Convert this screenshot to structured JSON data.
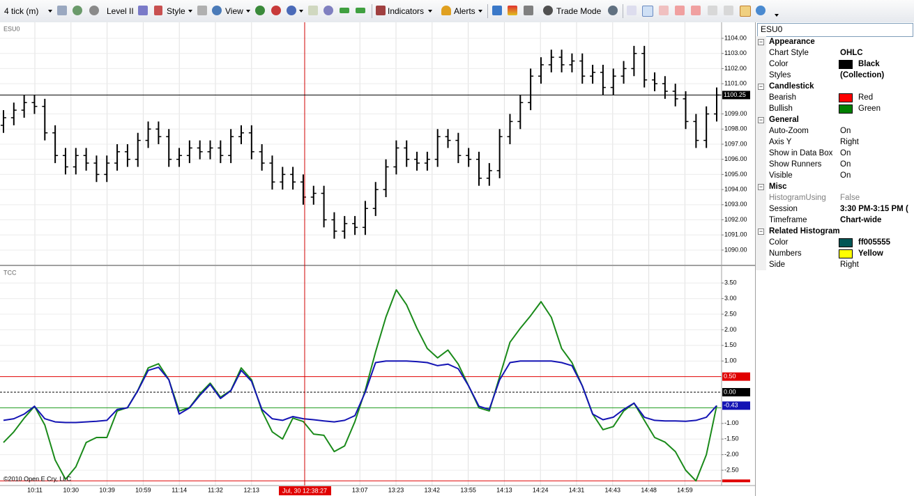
{
  "toolbar": {
    "items": [
      "4 tick (m)",
      "Level II",
      "Style",
      "View",
      "Indicators",
      "Alerts",
      "Trade Mode"
    ]
  },
  "chart_data": [
    {
      "type": "ohlc",
      "title": "ESU0",
      "color": "#000000",
      "grid": true,
      "open": [
        1098.25,
        1098.75,
        1099.25,
        1099.75,
        1099.5,
        1097.75,
        1096.25,
        1095.5,
        1096.25,
        1095.75,
        1095.0,
        1095.75,
        1096.5,
        1096.0,
        1097.25,
        1098.0,
        1097.5,
        1096.0,
        1096.25,
        1096.75,
        1096.5,
        1096.75,
        1096.25,
        1097.5,
        1097.75,
        1096.5,
        1095.75,
        1094.5,
        1095.0,
        1094.5,
        1093.5,
        1093.75,
        1092.0,
        1091.25,
        1091.75,
        1091.5,
        1092.75,
        1094.0,
        1095.5,
        1096.75,
        1096.0,
        1095.75,
        1096.0,
        1097.5,
        1097.25,
        1096.25,
        1096.0,
        1094.75,
        1095.25,
        1097.5,
        1098.5,
        1099.75,
        1101.5,
        1102.25,
        1102.75,
        1102.25,
        1102.5,
        1101.5,
        1101.75,
        1100.75,
        1101.5,
        1102.0,
        1103.0,
        1101.25,
        1101.0,
        1100.5,
        1100.0,
        1098.5,
        1097.25,
        1099.0
      ],
      "high": [
        1099.25,
        1099.75,
        1100.25,
        1100.25,
        1100.0,
        1098.25,
        1096.75,
        1096.75,
        1096.75,
        1096.25,
        1096.25,
        1097.0,
        1097.0,
        1097.75,
        1098.5,
        1098.5,
        1098.0,
        1096.75,
        1097.25,
        1097.25,
        1097.25,
        1097.25,
        1098.0,
        1098.25,
        1098.25,
        1097.0,
        1096.25,
        1095.5,
        1095.5,
        1095.0,
        1094.25,
        1094.25,
        1092.5,
        1092.25,
        1092.25,
        1093.25,
        1094.5,
        1096.0,
        1097.25,
        1097.25,
        1096.5,
        1096.5,
        1098.0,
        1098.0,
        1097.75,
        1096.75,
        1096.5,
        1095.75,
        1098.0,
        1099.0,
        1100.25,
        1102.0,
        1102.75,
        1103.25,
        1103.25,
        1103.0,
        1103.0,
        1102.25,
        1102.25,
        1102.0,
        1102.5,
        1103.5,
        1103.5,
        1101.75,
        1101.5,
        1101.0,
        1100.5,
        1099.0,
        1099.5,
        1100.75
      ],
      "low": [
        1097.75,
        1098.25,
        1098.75,
        1099.0,
        1097.25,
        1095.75,
        1095.0,
        1095.0,
        1095.25,
        1094.5,
        1094.5,
        1095.25,
        1095.5,
        1095.5,
        1096.75,
        1097.0,
        1095.5,
        1095.5,
        1095.75,
        1096.0,
        1096.0,
        1095.75,
        1095.75,
        1097.0,
        1096.0,
        1095.25,
        1094.0,
        1094.0,
        1094.0,
        1093.0,
        1093.0,
        1091.5,
        1090.75,
        1090.75,
        1091.0,
        1091.0,
        1092.25,
        1093.5,
        1095.0,
        1095.5,
        1095.25,
        1095.25,
        1095.5,
        1096.75,
        1095.75,
        1095.5,
        1094.25,
        1094.25,
        1094.75,
        1097.0,
        1098.0,
        1099.25,
        1101.0,
        1101.75,
        1101.75,
        1101.75,
        1101.0,
        1101.0,
        1100.25,
        1100.25,
        1101.0,
        1101.5,
        1100.75,
        1100.5,
        1100.0,
        1099.5,
        1098.0,
        1096.75,
        1096.75,
        1098.5
      ],
      "close": [
        1098.75,
        1099.25,
        1099.75,
        1099.5,
        1097.75,
        1096.25,
        1095.5,
        1096.25,
        1095.75,
        1095.0,
        1095.75,
        1096.5,
        1096.0,
        1097.25,
        1098.0,
        1097.5,
        1096.0,
        1096.25,
        1096.75,
        1096.5,
        1096.75,
        1096.25,
        1097.5,
        1097.75,
        1096.5,
        1095.75,
        1094.5,
        1095.0,
        1094.5,
        1093.5,
        1093.75,
        1092.0,
        1091.25,
        1091.75,
        1091.5,
        1092.75,
        1094.0,
        1095.5,
        1096.75,
        1096.0,
        1095.75,
        1096.0,
        1097.5,
        1097.25,
        1096.25,
        1096.0,
        1094.75,
        1095.25,
        1097.5,
        1098.5,
        1099.75,
        1101.5,
        1102.25,
        1102.75,
        1102.25,
        1102.5,
        1101.5,
        1101.75,
        1100.75,
        1101.5,
        1102.0,
        1103.0,
        1101.25,
        1101.0,
        1100.5,
        1100.0,
        1098.5,
        1097.25,
        1099.0,
        1100.25
      ],
      "last_price": 1100.25,
      "ylim": [
        1089.03,
        1105.06
      ],
      "yticks": [
        {
          "value": 1104,
          "label": "1104.00"
        },
        {
          "value": 1103,
          "label": "1103.00"
        },
        {
          "value": 1102,
          "label": "1102.00"
        },
        {
          "value": 1101,
          "label": "1101.00"
        },
        {
          "value": 1099,
          "label": "1099.00"
        },
        {
          "value": 1098,
          "label": "1098.00"
        },
        {
          "value": 1097,
          "label": "1097.00"
        },
        {
          "value": 1096,
          "label": "1096.00"
        },
        {
          "value": 1095,
          "label": "1095.00"
        },
        {
          "value": 1094,
          "label": "1094.00"
        },
        {
          "value": 1093,
          "label": "1093.00"
        },
        {
          "value": 1092,
          "label": "1092.00"
        },
        {
          "value": 1091,
          "label": "1091.00"
        },
        {
          "value": 1090,
          "label": "1090.00"
        }
      ]
    },
    {
      "type": "line",
      "title": "TCC",
      "grid": true,
      "series": [
        {
          "color": "#1a8a1a",
          "values": [
            -1.61,
            -1.27,
            -0.83,
            -0.45,
            -1.05,
            -2.17,
            -2.79,
            -2.39,
            -1.61,
            -1.45,
            -1.45,
            -0.6,
            -0.49,
            0.06,
            0.78,
            0.91,
            0.4,
            -0.6,
            -0.49,
            -0.05,
            0.29,
            -0.16,
            0.06,
            0.78,
            0.4,
            -0.6,
            -1.27,
            -1.5,
            -0.83,
            -0.94,
            -1.34,
            -1.38,
            -1.9,
            -1.72,
            -0.94,
            0.06,
            1.29,
            2.41,
            3.28,
            2.8,
            2.05,
            1.4,
            1.1,
            1.35,
            0.9,
            0.2,
            -0.5,
            -0.6,
            0.5,
            1.6,
            2.05,
            2.45,
            2.9,
            2.4,
            1.4,
            0.95,
            0.2,
            -0.7,
            -1.2,
            -1.1,
            -0.6,
            -0.35,
            -0.9,
            -1.45,
            -1.6,
            -1.9,
            -2.5,
            -2.84,
            -2.0,
            -0.43
          ]
        },
        {
          "color": "#1414b4",
          "values": [
            -0.9,
            -0.85,
            -0.7,
            -0.45,
            -0.85,
            -0.95,
            -0.97,
            -0.97,
            -0.95,
            -0.93,
            -0.9,
            -0.55,
            -0.5,
            0.05,
            0.7,
            0.8,
            0.4,
            -0.7,
            -0.5,
            -0.1,
            0.25,
            -0.2,
            0.05,
            0.7,
            0.35,
            -0.55,
            -0.85,
            -0.9,
            -0.78,
            -0.85,
            -0.88,
            -0.92,
            -0.95,
            -0.9,
            -0.75,
            0.0,
            0.95,
            1.0,
            1.0,
            1.0,
            0.98,
            0.95,
            0.85,
            0.9,
            0.75,
            0.2,
            -0.45,
            -0.55,
            0.4,
            0.95,
            1.0,
            1.0,
            1.0,
            1.0,
            0.95,
            0.85,
            0.2,
            -0.7,
            -0.88,
            -0.8,
            -0.55,
            -0.35,
            -0.8,
            -0.9,
            -0.92,
            -0.92,
            -0.93,
            -0.9,
            -0.8,
            -0.43
          ]
        }
      ],
      "last_value": -0.43,
      "levels": [
        {
          "value": 0.5,
          "label": "0.50",
          "color": "#e00000"
        },
        {
          "value": 0,
          "label": "0.00",
          "color": "#000000",
          "dashed": true
        },
        {
          "value": -0.5,
          "color": "#1a9a1a"
        },
        {
          "value": -2.84,
          "color": "#e00000"
        }
      ],
      "ylim": [
        -2.99,
        4.04
      ],
      "yticks": [
        {
          "value": 3.5,
          "label": "3.50"
        },
        {
          "value": 3,
          "label": "3.00"
        },
        {
          "value": 2.5,
          "label": "2.50"
        },
        {
          "value": 2,
          "label": "2.00"
        },
        {
          "value": 1.5,
          "label": "1.50"
        },
        {
          "value": 1,
          "label": "1.00"
        },
        {
          "value": -1,
          "label": "-1.00"
        },
        {
          "value": -1.5,
          "label": "-1.50"
        },
        {
          "value": -2,
          "label": "-2.00"
        },
        {
          "value": -2.5,
          "label": "-2.50"
        }
      ]
    }
  ],
  "time_axis": {
    "labels": [
      "10:11",
      "10:30",
      "10:39",
      "10:59",
      "11:14",
      "11:32",
      "12:13",
      "13:07",
      "13:23",
      "13:42",
      "13:55",
      "14:13",
      "14:24",
      "14:31",
      "14:43",
      "14:48",
      "14:59"
    ],
    "crosshair_label": "Jul, 30 12:38:27"
  },
  "footer": "©2010 Open E Cry, LLC",
  "properties": {
    "object": "ESU0",
    "groups": [
      {
        "name": "Appearance",
        "rows": [
          {
            "name": "Chart Style",
            "value": "OHLC",
            "bold": true
          },
          {
            "name": "Color",
            "value": "Black",
            "bold": true,
            "swatch": "#000000"
          },
          {
            "name": "Styles",
            "value": "(Collection)",
            "bold": true
          }
        ]
      },
      {
        "name": "Candlestick",
        "rows": [
          {
            "name": "Bearish",
            "value": "Red",
            "swatch": "#ff0000"
          },
          {
            "name": "Bullish",
            "value": "Green",
            "swatch": "#008000"
          }
        ]
      },
      {
        "name": "General",
        "rows": [
          {
            "name": "Auto-Zoom",
            "value": "On"
          },
          {
            "name": "Axis Y",
            "value": "Right"
          },
          {
            "name": "Show in Data Box",
            "value": "On"
          },
          {
            "name": "Show Runners",
            "value": "On"
          },
          {
            "name": "Visible",
            "value": "On"
          }
        ]
      },
      {
        "name": "Misc",
        "rows": [
          {
            "name": "HistogramUsing",
            "value": "False",
            "disabled": true
          },
          {
            "name": "Session",
            "value": "3:30 PM-3:15 PM (",
            "bold": true
          },
          {
            "name": "Timeframe",
            "value": "Chart-wide",
            "bold": true
          }
        ]
      },
      {
        "name": "Related Histogram",
        "rows": [
          {
            "name": "Color",
            "value": "ff005555",
            "bold": true,
            "swatch": "#005555"
          },
          {
            "name": "Numbers",
            "value": "Yellow",
            "bold": true,
            "swatch": "#ffff00"
          },
          {
            "name": "Side",
            "value": "Right"
          }
        ]
      }
    ]
  }
}
